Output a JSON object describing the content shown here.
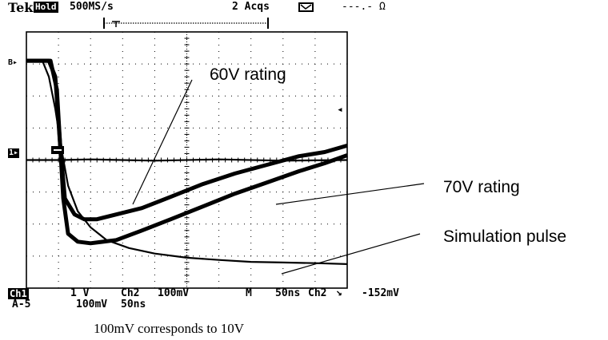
{
  "header": {
    "brand": "Tek",
    "mode_badge": "Hold",
    "sample_rate": "500MS/s",
    "acquisitions": "2 Acqs",
    "readout": "---.- Ω"
  },
  "annotations": {
    "rating_60v": "60V rating",
    "rating_70v": "70V rating",
    "simulation": "Simulation pulse",
    "caption": "100mV corresponds to 10V"
  },
  "channel_markers": {
    "ch1_ref": "1▸",
    "trigger_ref": "B▸",
    "right_arrow": "◂"
  },
  "footer": {
    "ch1_badge": "Ch1",
    "ch1_scale": "1 V",
    "ch2_label": "Ch2",
    "ch2_scale": "100mV",
    "timebase_label": "M",
    "timebase": "50ns",
    "trigger_source": "Ch2",
    "trigger_slope": "↘",
    "trigger_level": "-152mV",
    "math_label": "A-5",
    "math_scale": "100mV",
    "math_time": "50ns"
  },
  "chart_data": {
    "type": "line",
    "title": "",
    "xlabel": "",
    "ylabel": "",
    "x_unit": "divisions (50ns/div)",
    "y_unit": "divisions (100mV/div)",
    "xlim": [
      0,
      10
    ],
    "ylim": [
      -4,
      4
    ],
    "grid": true,
    "series": [
      {
        "name": "60V rating",
        "points": [
          [
            0,
            3.1
          ],
          [
            0.7,
            3.1
          ],
          [
            0.9,
            2.6
          ],
          [
            1.05,
            0.5
          ],
          [
            1.2,
            -1.2
          ],
          [
            1.5,
            -1.7
          ],
          [
            1.8,
            -1.85
          ],
          [
            2.2,
            -1.85
          ],
          [
            2.8,
            -1.7
          ],
          [
            3.6,
            -1.5
          ],
          [
            4.5,
            -1.15
          ],
          [
            5.5,
            -0.75
          ],
          [
            6.5,
            -0.42
          ],
          [
            7.5,
            -0.15
          ],
          [
            8.5,
            0.12
          ],
          [
            9.3,
            0.25
          ],
          [
            10,
            0.45
          ]
        ]
      },
      {
        "name": "70V rating",
        "points": [
          [
            0,
            3.1
          ],
          [
            0.75,
            3.1
          ],
          [
            0.95,
            2.2
          ],
          [
            1.05,
            0.5
          ],
          [
            1.15,
            -1.2
          ],
          [
            1.3,
            -2.3
          ],
          [
            1.6,
            -2.55
          ],
          [
            2.0,
            -2.6
          ],
          [
            2.8,
            -2.5
          ],
          [
            3.6,
            -2.2
          ],
          [
            4.5,
            -1.85
          ],
          [
            5.5,
            -1.45
          ],
          [
            6.5,
            -1.05
          ],
          [
            7.5,
            -0.7
          ],
          [
            8.5,
            -0.35
          ],
          [
            9.3,
            -0.1
          ],
          [
            10,
            0.15
          ]
        ]
      },
      {
        "name": "Simulation pulse",
        "points": [
          [
            0,
            3.1
          ],
          [
            0.5,
            3.1
          ],
          [
            0.7,
            2.6
          ],
          [
            0.9,
            1.6
          ],
          [
            1.1,
            0.3
          ],
          [
            1.3,
            -0.8
          ],
          [
            1.6,
            -1.6
          ],
          [
            2.0,
            -2.1
          ],
          [
            2.5,
            -2.5
          ],
          [
            3.2,
            -2.75
          ],
          [
            4.0,
            -2.92
          ],
          [
            5.0,
            -3.05
          ],
          [
            6.0,
            -3.12
          ],
          [
            7.0,
            -3.18
          ],
          [
            8.0,
            -3.2
          ],
          [
            9.0,
            -3.22
          ],
          [
            10,
            -3.25
          ]
        ]
      },
      {
        "name": "Ch1 reference",
        "points": [
          [
            0,
            0
          ],
          [
            1.1,
            0
          ],
          [
            2,
            0.02
          ],
          [
            4,
            -0.02
          ],
          [
            6,
            0.02
          ],
          [
            8,
            -0.02
          ],
          [
            10,
            0
          ]
        ]
      }
    ]
  }
}
